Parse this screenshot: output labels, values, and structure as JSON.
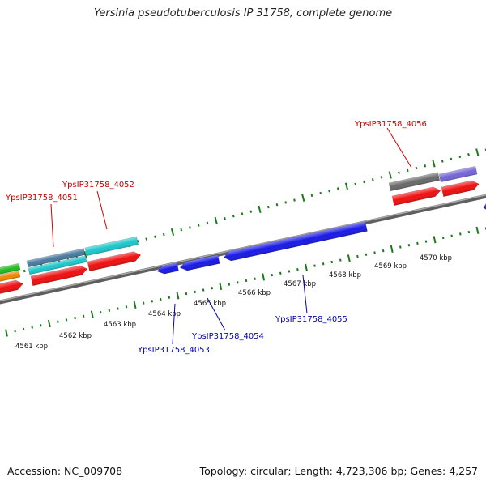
{
  "title": "Yersinia pseudotuberculosis IP 31758, complete genome",
  "footer": {
    "accession": "Accession: NC_009708",
    "topology": "Topology: circular; Length: 4,723,306 bp; Genes: 4,257"
  },
  "kbp_labels": [
    "4561 kbp",
    "4562 kbp",
    "4563 kbp",
    "4564 kbp",
    "4565 kbp",
    "4566 kbp",
    "4567 kbp",
    "4568 kbp",
    "4569 kbp",
    "4570 kbp"
  ],
  "gene_labels": {
    "g4051": "YpsIP31758_4051",
    "g4052": "YpsIP31758_4052",
    "g4053": "YpsIP31758_4053",
    "g4054": "YpsIP31758_4054",
    "g4055": "YpsIP31758_4055",
    "g4056": "YpsIP31758_4056"
  },
  "colors": {
    "forward_label": "#cc0000",
    "reverse_label": "#0000aa",
    "tick": "#1a7a1a",
    "backbone": "#808080",
    "red_gene": "#ee1111",
    "blue_gene": "#1a1ae6",
    "cyan_gene": "#1cc8cc",
    "steel_gene": "#4a7aa0",
    "gray_gene": "#6a6a6a",
    "lavender_gene": "#7466d6",
    "green_gene": "#22bb22",
    "orange_gene": "#ee8800"
  }
}
